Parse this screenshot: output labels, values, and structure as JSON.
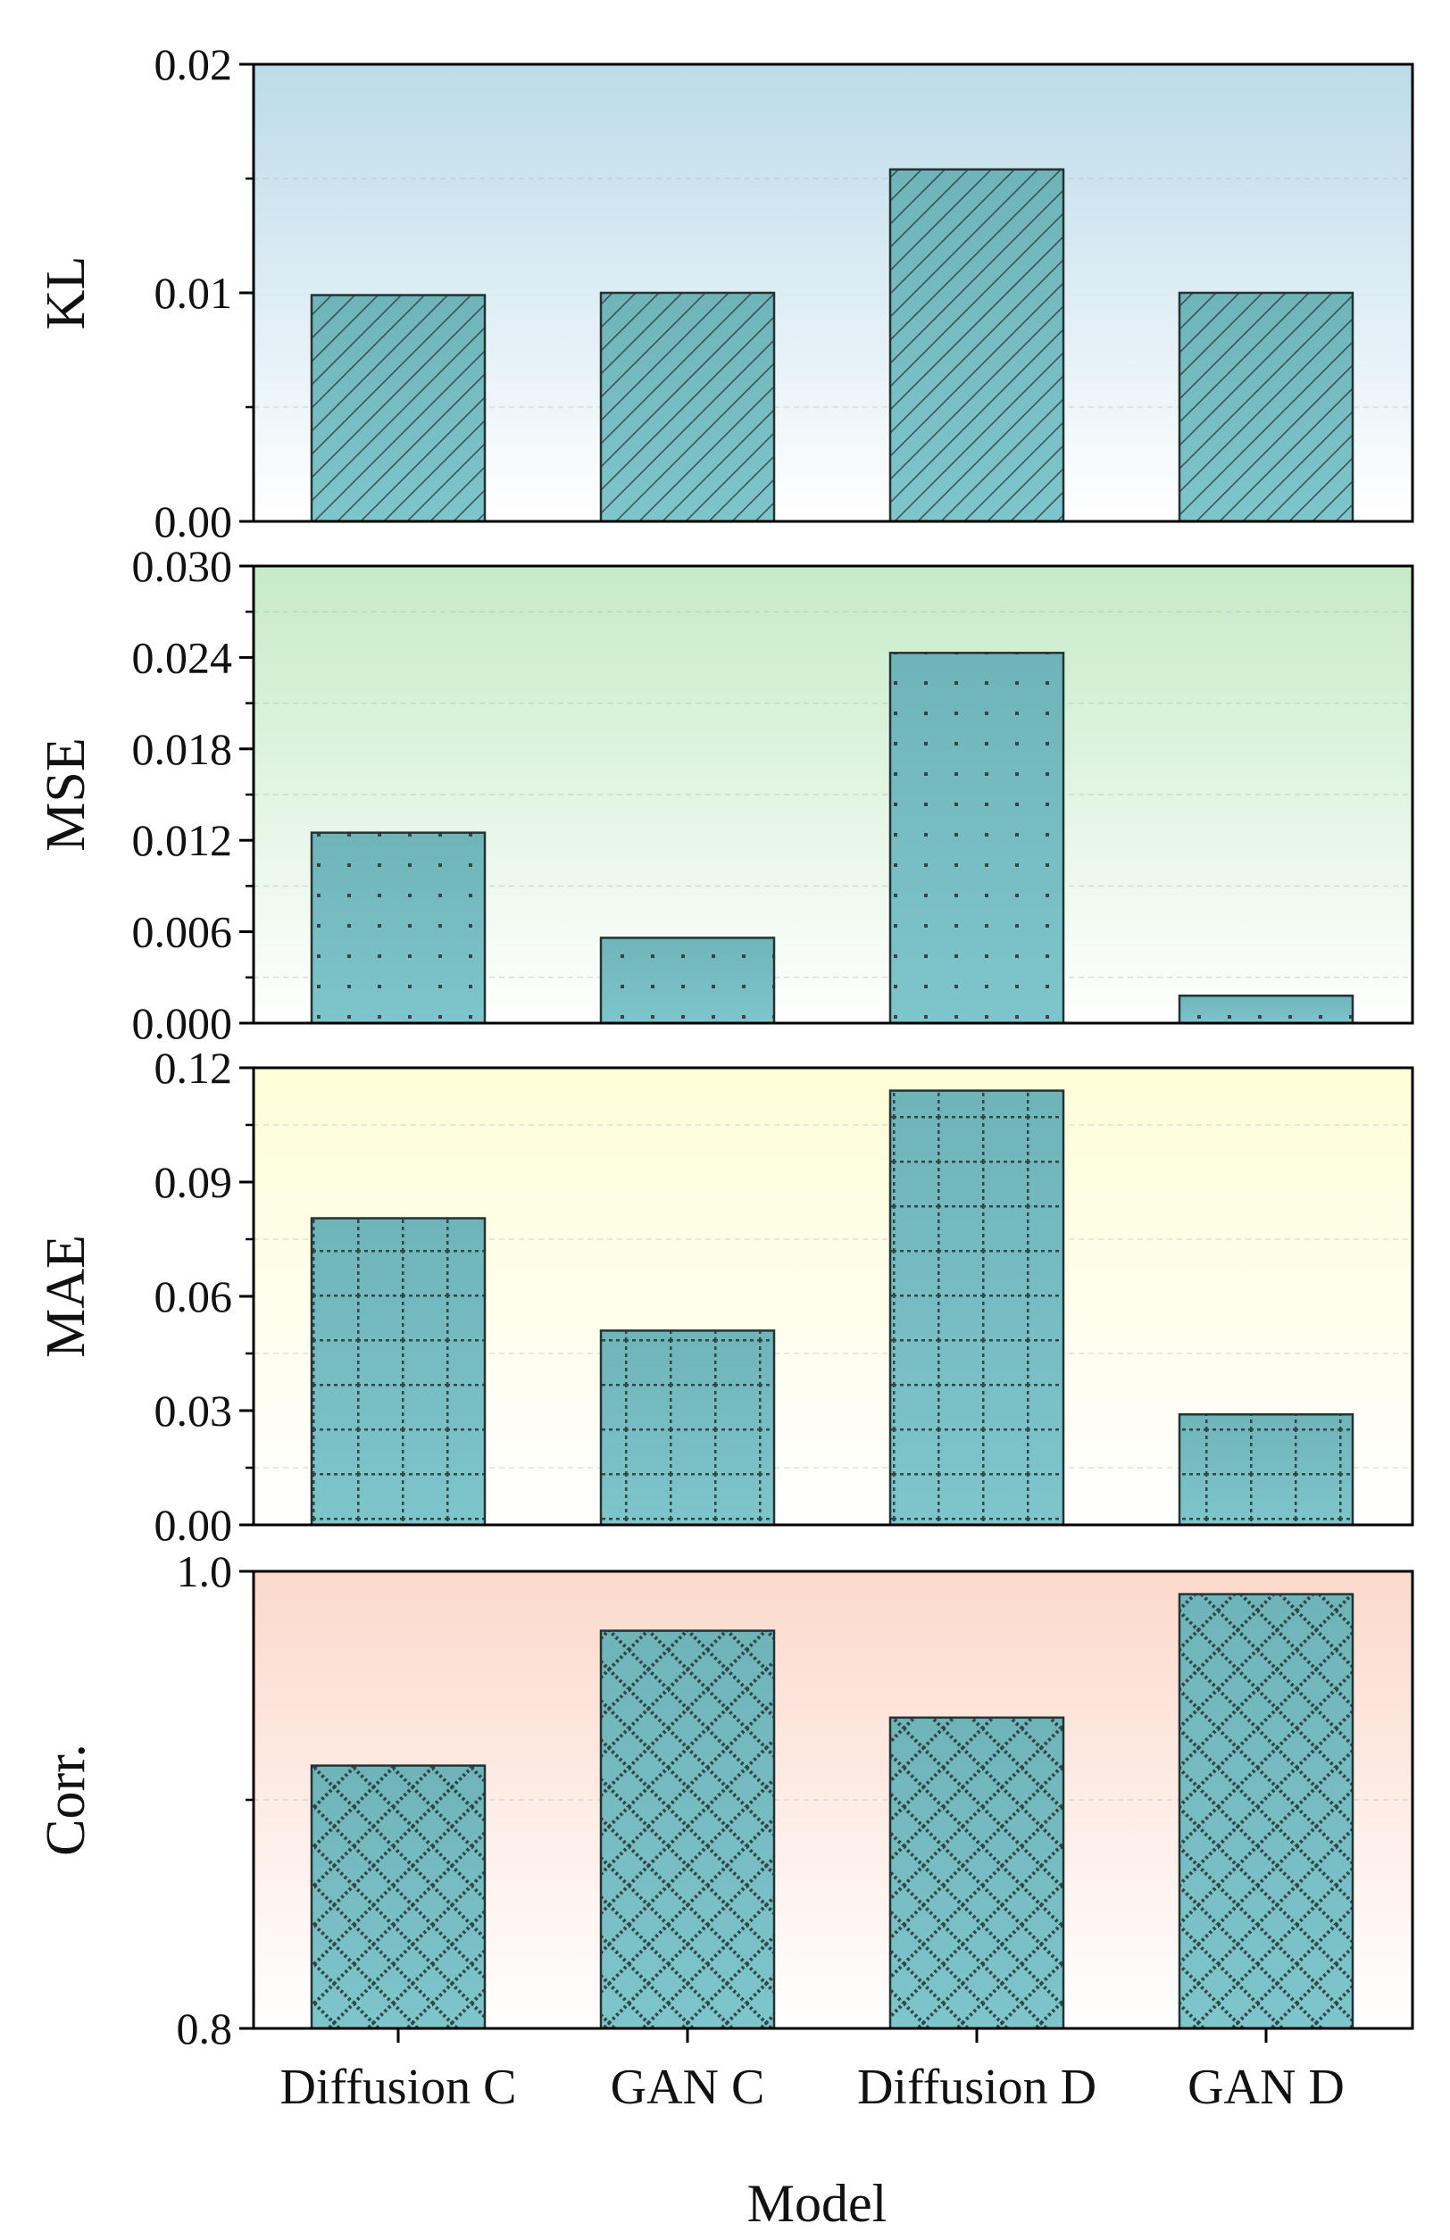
{
  "chart_data": {
    "type": "bar",
    "xlabel": "Model",
    "categories": [
      "Diffusion C",
      "GAN C",
      "Diffusion D",
      "GAN D"
    ],
    "grid": true,
    "panels": [
      {
        "ylabel": "KL",
        "ylim": [
          0,
          0.02
        ],
        "yticks": [
          "0.00",
          "0.01",
          "0.02"
        ],
        "tick_values": [
          0,
          0.01,
          0.02
        ],
        "minor_tick_values": [
          0.005,
          0.015
        ],
        "values": [
          0.0099,
          0.01,
          0.0154,
          0.01
        ],
        "background_color": "#bcdbea",
        "hatch": "diagonal"
      },
      {
        "ylabel": "MSE",
        "ylim": [
          0,
          0.03
        ],
        "yticks": [
          "0.000",
          "0.006",
          "0.012",
          "0.018",
          "0.024",
          "0.030"
        ],
        "tick_values": [
          0,
          0.006,
          0.012,
          0.018,
          0.024,
          0.03
        ],
        "minor_tick_values": [
          0.003,
          0.009,
          0.015,
          0.021,
          0.027
        ],
        "values": [
          0.0125,
          0.0056,
          0.0243,
          0.0018
        ],
        "background_color": "#c6ebc7",
        "hatch": "dots"
      },
      {
        "ylabel": "MAE",
        "ylim": [
          0,
          0.12
        ],
        "yticks": [
          "0.00",
          "0.03",
          "0.06",
          "0.09",
          "0.12"
        ],
        "tick_values": [
          0,
          0.03,
          0.06,
          0.09,
          0.12
        ],
        "minor_tick_values": [
          0.015,
          0.045,
          0.075,
          0.105
        ],
        "values": [
          0.0805,
          0.051,
          0.114,
          0.029
        ],
        "background_color": "#fdfdd7",
        "hatch": "grid"
      },
      {
        "ylabel": "Corr.",
        "ylim": [
          0.8,
          1.0
        ],
        "yticks": [
          "0.8",
          "1.0"
        ],
        "tick_values": [
          0.8,
          1.0
        ],
        "minor_tick_values": [
          0.9
        ],
        "values": [
          0.915,
          0.974,
          0.936,
          0.99
        ],
        "background_color": "#fcd9cc",
        "hatch": "brick"
      }
    ],
    "bar_color": "#7ec5cc",
    "bar_edge_color": "#233333"
  }
}
